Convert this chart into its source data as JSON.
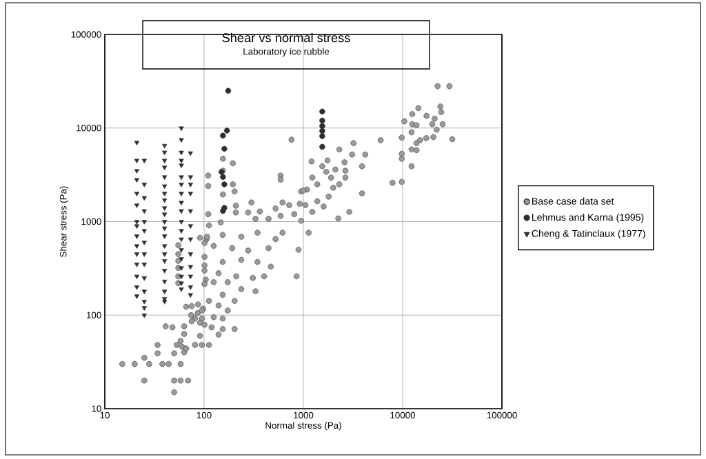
{
  "chart_data": {
    "type": "scatter",
    "title": "Shear vs normal stress",
    "subtitle": "Laboratory ice rubble",
    "xlabel": "Normal stress  (Pa)",
    "ylabel": "Shear stress  (Pa)",
    "log": "xy",
    "grid": true,
    "legend": "right",
    "xlim": [
      10,
      100000
    ],
    "ylim": [
      10,
      100000
    ],
    "xticks": [
      10,
      100,
      1000,
      10000,
      100000
    ],
    "yticks": [
      10,
      100,
      1000,
      10000,
      100000
    ],
    "series": [
      {
        "name": "Base case data set",
        "color": "#9a9a9a",
        "marker": "circle",
        "x": [
          15,
          20,
          25,
          28,
          38,
          44,
          58,
          25,
          50,
          58,
          69,
          50,
          34,
          34,
          50,
          53,
          60,
          63,
          58,
          66,
          41,
          48,
          63,
          63,
          91,
          81,
          95,
          112,
          66,
          75,
          87,
          98,
          74,
          86,
          81,
          95,
          75,
          91,
          101,
          91,
          106,
          101,
          101,
          104,
          55,
          55,
          55,
          55,
          55,
          55,
          107,
          154,
          237,
          345,
          525,
          617,
          125,
          192,
          278,
          446,
          893,
          101,
          154,
          237,
          345,
          470,
          101,
          140,
          211,
          310,
          402,
          855,
          125,
          173,
          237,
          330,
          101,
          112,
          154,
          203,
          140,
          173,
          95,
          125,
          154,
          119,
          154,
          203,
          140,
          110,
          110,
          155,
          155,
          195,
          195,
          203,
          155,
          110,
          209,
          300,
          209,
          278,
          365,
          525,
          617,
          720,
          920,
          590,
          810,
          950,
          330,
          446,
          147,
          760,
          590,
          590,
          950,
          1090,
          112,
          1210,
          1750,
          1550,
          2100,
          2600,
          2300,
          3200,
          3100,
          4200,
          3900,
          3900,
          2900,
          2250,
          6000,
          2650,
          2650,
          2300,
          1900,
          1700,
          1230,
          1380,
          2000,
          1000,
          1050,
          1380,
          1800,
          1600,
          1230,
          1130,
          7900,
          9800,
          9800,
          9800,
          9800,
          10400,
          12500,
          14400,
          12500,
          13800,
          12300,
          12300,
          13800,
          13800,
          15000,
          17300,
          20400,
          22000,
          19900,
          25300,
          21000,
          24000,
          24500,
          22500,
          29600,
          31600,
          17400,
          12300
        ],
        "values": [
          30,
          30,
          35,
          30,
          30,
          30,
          30,
          20,
          20,
          20,
          20,
          15,
          48,
          39,
          39,
          48,
          46,
          40,
          53,
          44,
          76,
          74,
          76,
          63,
          60,
          48,
          48,
          48,
          123,
          125,
          130,
          117,
          100,
          105,
          92,
          92,
          86,
          83,
          79,
          670,
          650,
          590,
          340,
          240,
          560,
          450,
          380,
          320,
          260,
          220,
          690,
          720,
          690,
          760,
          650,
          760,
          550,
          520,
          490,
          520,
          500,
          420,
          370,
          390,
          370,
          330,
          300,
          280,
          260,
          250,
          260,
          260,
          225,
          225,
          190,
          180,
          215,
          142,
          165,
          142,
          127,
          112,
          112,
          95,
          92,
          74,
          71,
          71,
          62,
          3100,
          2400,
          4700,
          3500,
          4200,
          2500,
          2100,
          1950,
          1200,
          1480,
          1600,
          1250,
          1250,
          1280,
          1380,
          1600,
          1500,
          1550,
          1150,
          1200,
          1020,
          1070,
          1070,
          980,
          7500,
          3100,
          2800,
          2100,
          2200,
          910,
          4400,
          4500,
          3900,
          3600,
          4300,
          5900,
          6900,
          5200,
          5200,
          3900,
          2000,
          1270,
          1080,
          7400,
          3500,
          2950,
          2500,
          2950,
          3400,
          2950,
          2500,
          2300,
          2150,
          1500,
          1650,
          1850,
          1450,
          1270,
          760,
          2600,
          2650,
          7900,
          4700,
          5300,
          11800,
          14100,
          16300,
          11000,
          10700,
          9000,
          5900,
          5800,
          6900,
          7400,
          7800,
          8000,
          9600,
          11000,
          11000,
          12600,
          17000,
          14800,
          28000,
          28000,
          7600,
          13500,
          3900
        ]
      },
      {
        "name": "Lehmus and Karna (1995)",
        "color": "#2e2e3a",
        "marker": "circle",
        "x": [
          175,
          155,
          170,
          160,
          150,
          155,
          160,
          155,
          160,
          1550,
          1550,
          1550,
          1550,
          1550,
          1550
        ],
        "values": [
          25000,
          8300,
          9400,
          6000,
          3400,
          3000,
          2500,
          1300,
          1400,
          15000,
          12000,
          10500,
          9300,
          8200,
          6300
        ]
      },
      {
        "name": "Cheng & Tatinclaux (1977)",
        "color": "#2e2e3a",
        "marker": "triangle",
        "x": [
          21,
          21,
          21,
          21,
          21,
          21,
          21,
          21,
          21,
          21,
          21,
          21,
          21,
          21,
          21,
          25,
          25,
          25,
          25,
          25,
          25,
          25,
          25,
          25,
          25,
          25,
          25,
          25,
          25,
          40,
          40,
          40,
          40,
          40,
          40,
          40,
          40,
          40,
          40,
          40,
          40,
          40,
          40,
          40,
          40,
          40,
          40,
          40,
          40,
          40,
          59,
          59,
          59,
          59,
          59,
          59,
          59,
          59,
          59,
          59,
          59,
          59,
          59,
          59,
          59,
          59,
          59,
          59,
          59,
          73,
          73,
          73,
          73,
          73,
          73,
          73,
          73,
          73,
          73,
          73,
          73
        ],
        "values": [
          7000,
          4500,
          3500,
          2800,
          2000,
          1500,
          1000,
          900,
          700,
          550,
          450,
          350,
          260,
          200,
          160,
          4500,
          2500,
          1800,
          1300,
          1000,
          800,
          600,
          450,
          350,
          250,
          180,
          140,
          120,
          100,
          6500,
          5500,
          4500,
          3800,
          3000,
          2400,
          2000,
          1700,
          1400,
          1200,
          1000,
          850,
          700,
          550,
          450,
          380,
          300,
          230,
          180,
          150,
          140,
          10000,
          7500,
          5500,
          4500,
          4000,
          3000,
          2500,
          2000,
          1600,
          1300,
          1000,
          800,
          650,
          500,
          400,
          320,
          260,
          220,
          190,
          5400,
          3000,
          2500,
          2000,
          1300,
          900,
          650,
          450,
          330,
          260,
          200,
          165
        ]
      }
    ]
  }
}
